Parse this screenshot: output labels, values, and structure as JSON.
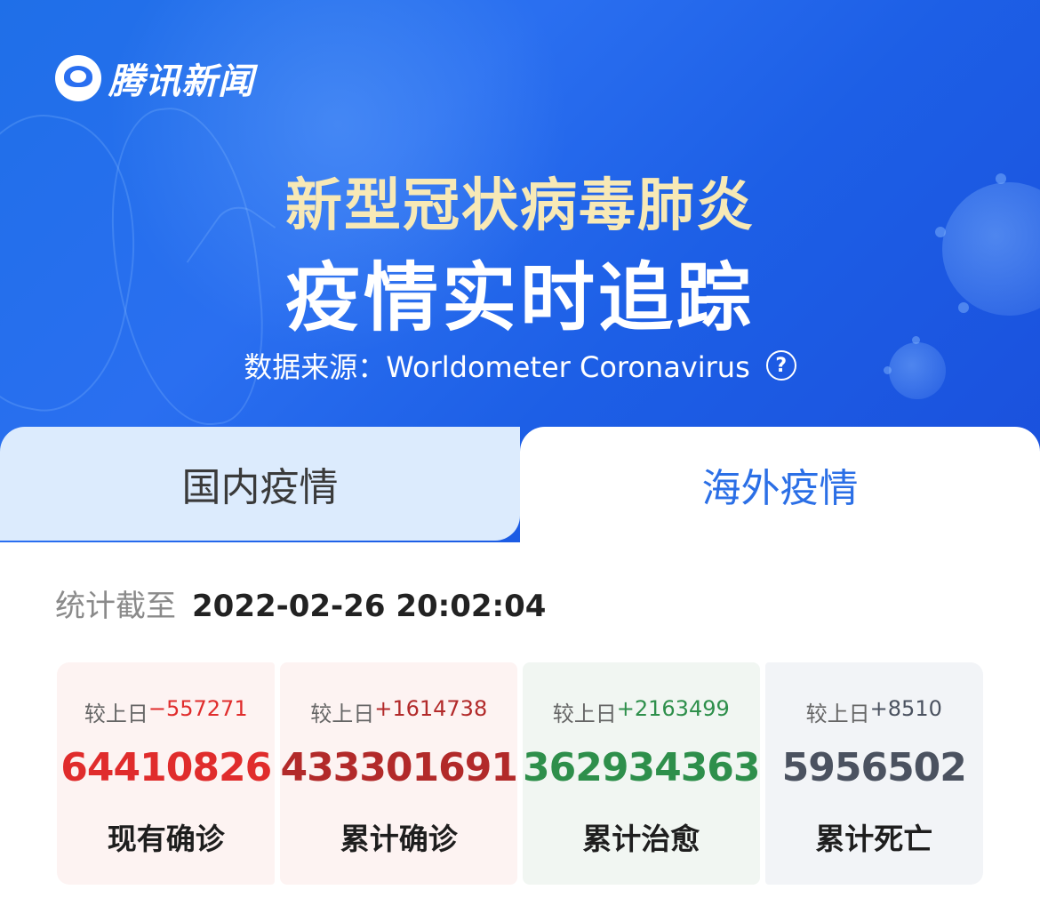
{
  "brand": {
    "name": "腾讯新闻"
  },
  "hero": {
    "title_line1": "新型冠状病毒肺炎",
    "title_line2": "疫情实时追踪",
    "source_label": "数据来源：",
    "source_name": "Worldometer Coronavirus",
    "help_icon": "?"
  },
  "tabs": [
    {
      "label": "国内疫情",
      "active": false
    },
    {
      "label": "海外疫情",
      "active": true
    }
  ],
  "stats": {
    "as_of_label": "统计截至",
    "as_of_value": "2022-02-26 20:02:04",
    "cards": [
      {
        "delta_prefix": "较上日",
        "delta": "−557271",
        "value": "64410826",
        "label": "现有确诊",
        "color": "#e02c2c"
      },
      {
        "delta_prefix": "较上日",
        "delta": "+1614738",
        "value": "433301691",
        "label": "累计确诊",
        "color": "#b22a2a"
      },
      {
        "delta_prefix": "较上日",
        "delta": "+2163499",
        "value": "362934363",
        "label": "累计治愈",
        "color": "#2e8f4b"
      },
      {
        "delta_prefix": "较上日",
        "delta": "+8510",
        "value": "5956502",
        "label": "累计死亡",
        "color": "#4b5260"
      }
    ]
  },
  "icons": {
    "logo": "tencent-news-logo",
    "help": "question-circle-icon"
  }
}
